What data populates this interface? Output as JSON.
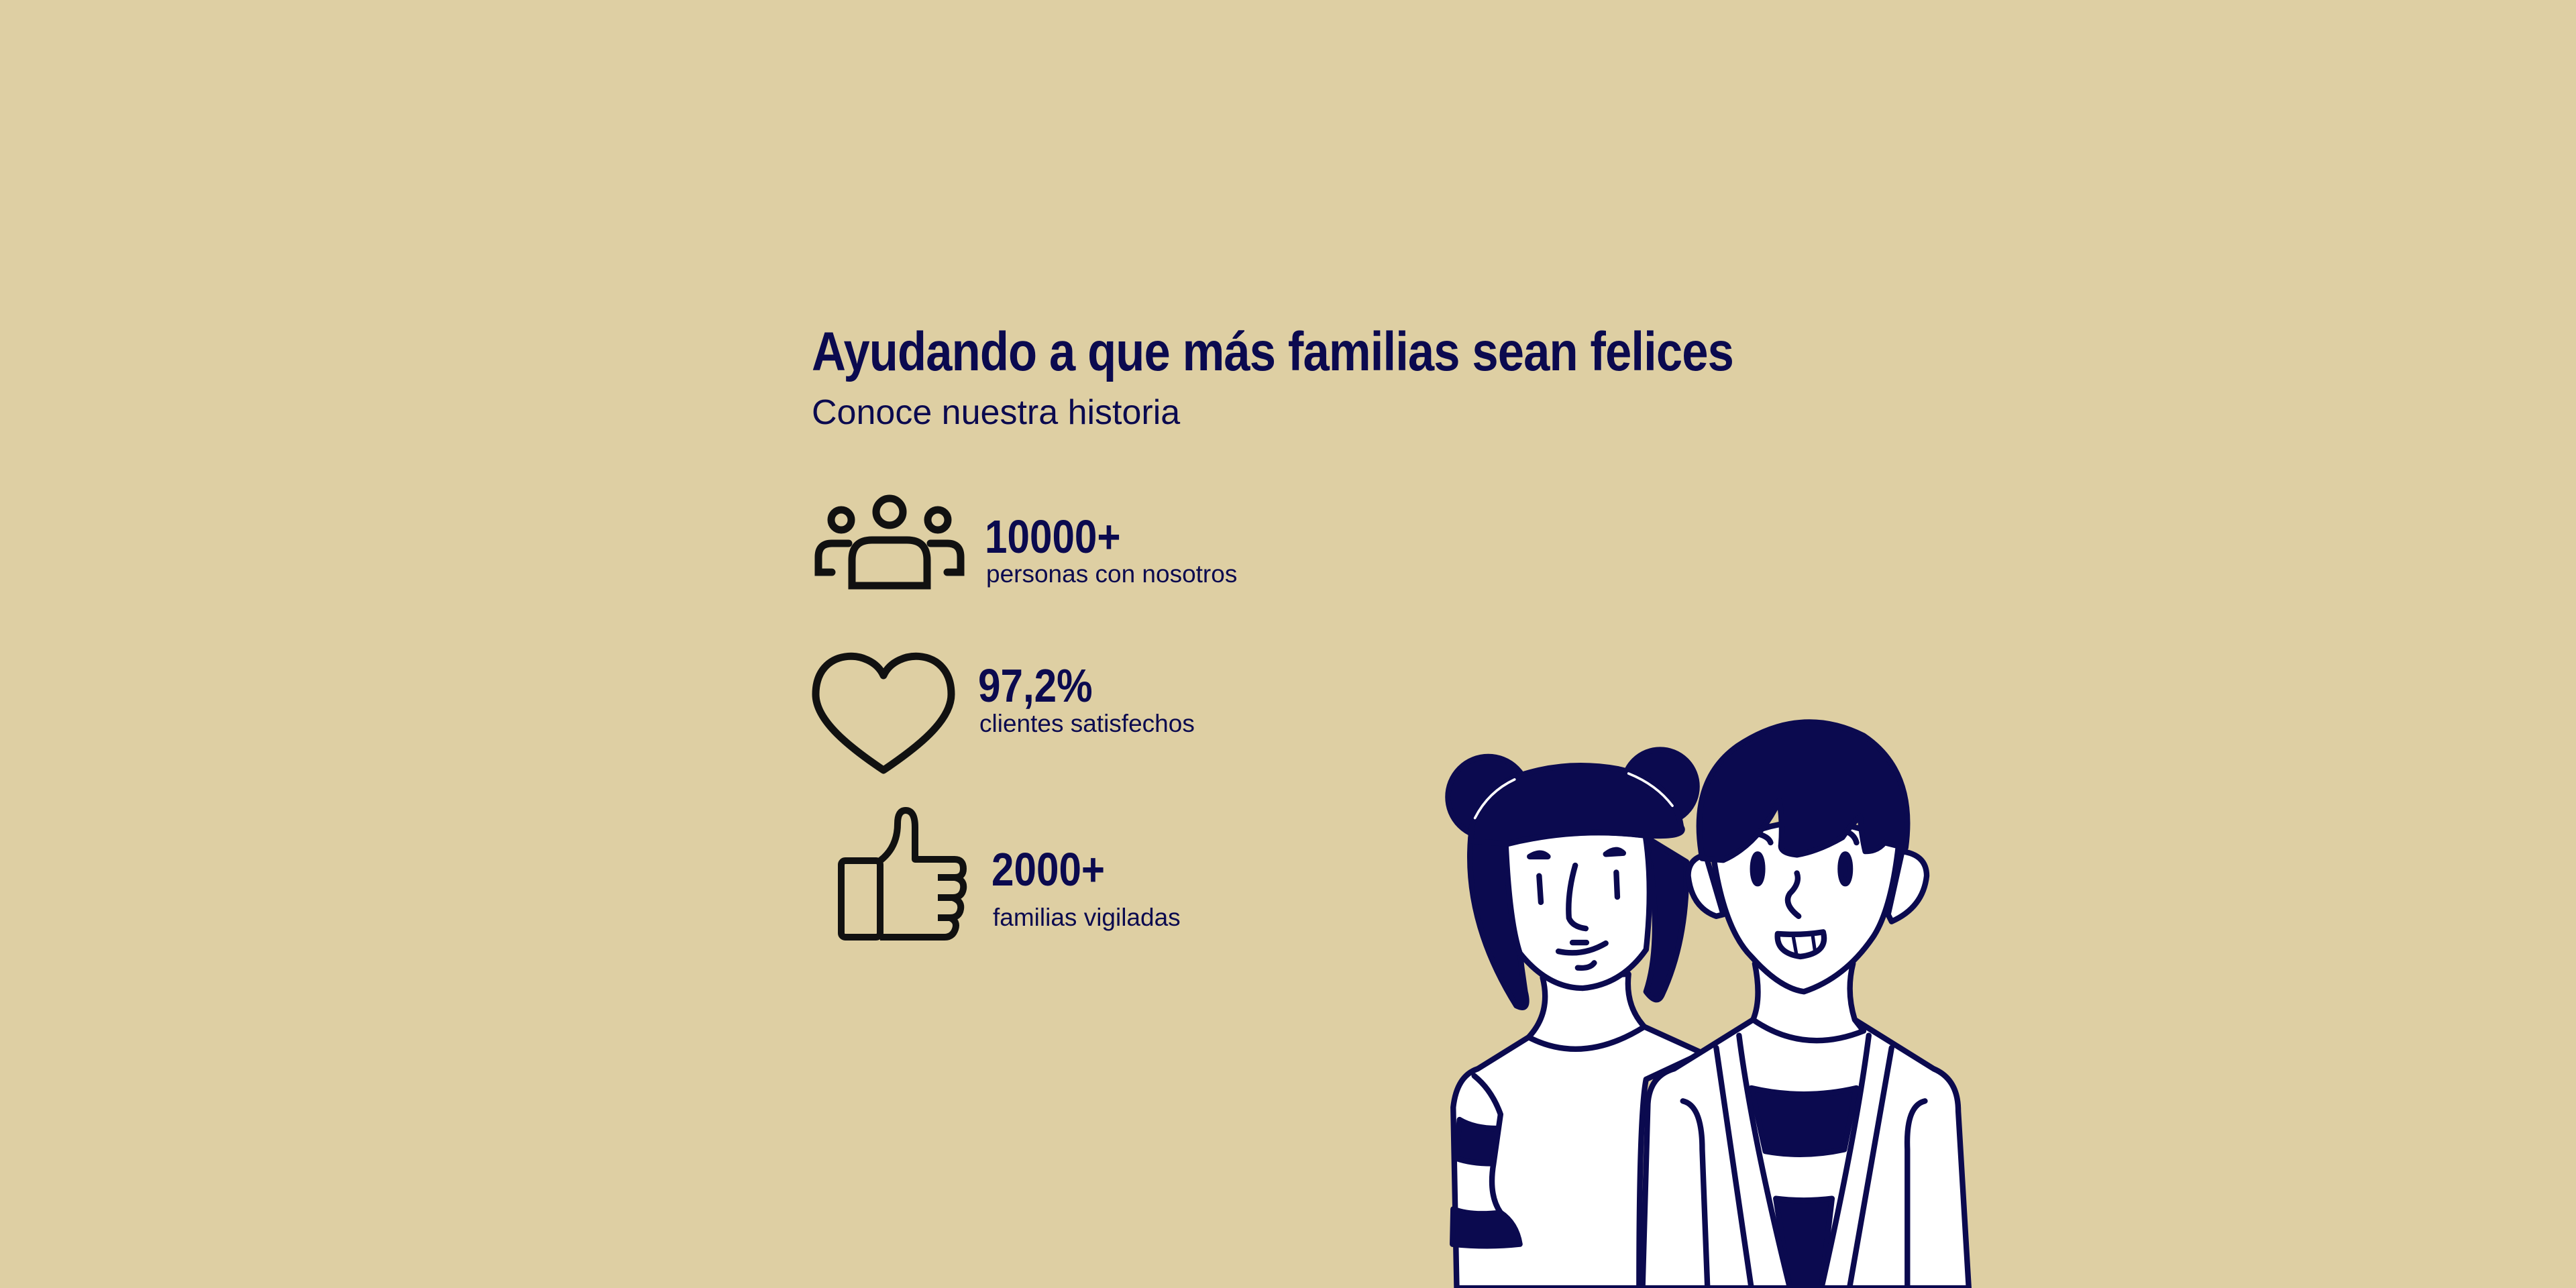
{
  "header": {
    "title": "Ayudando a que más familias sean felices",
    "subtitle": "Conoce nuestra historia"
  },
  "stats": [
    {
      "icon": "people-icon",
      "value": "10000+",
      "label": "personas con nosotros"
    },
    {
      "icon": "heart-icon",
      "value": "97,2%",
      "label": "clientes satisfechos"
    },
    {
      "icon": "thumbs-up-icon",
      "value": "2000+",
      "label": "familias vigiladas"
    }
  ],
  "colors": {
    "background": "#decfa3",
    "text": "#0b0a4f",
    "icon_stroke": "#111111"
  }
}
